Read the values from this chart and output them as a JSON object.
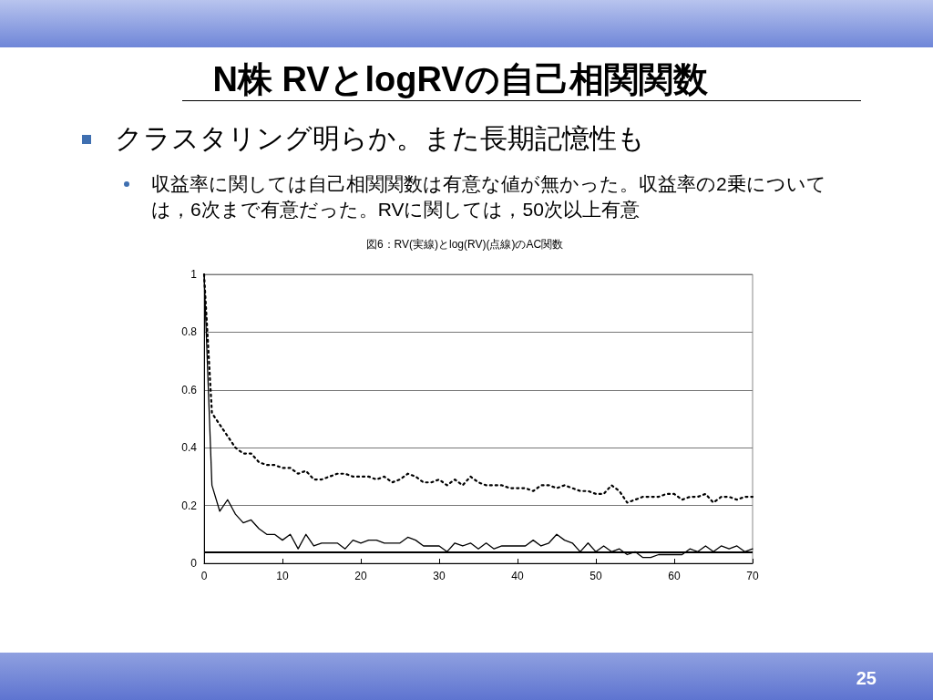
{
  "chart_data": {
    "type": "line",
    "title": "N株  RVとlogRVの自己相関関数",
    "subtitle": "図6：RV(実線)とlog(RV)(点線)のAC関数",
    "annotations": [
      "クラスタリング明らか。また長期記憶性も",
      "収益率に関しては自己相関関数は有意な値が無かった。収益率の2乗については，6次まで有意だった。RVに関しては，50次以上有意",
      "25"
    ],
    "x": [
      0,
      1,
      2,
      3,
      4,
      5,
      6,
      7,
      8,
      9,
      10,
      11,
      12,
      13,
      14,
      15,
      16,
      17,
      18,
      19,
      20,
      21,
      22,
      23,
      24,
      25,
      26,
      27,
      28,
      29,
      30,
      31,
      32,
      33,
      34,
      35,
      36,
      37,
      38,
      39,
      40,
      41,
      42,
      43,
      44,
      45,
      46,
      47,
      48,
      49,
      50,
      51,
      52,
      53,
      54,
      55,
      56,
      57,
      58,
      59,
      60,
      61,
      62,
      63,
      64,
      65,
      66,
      67,
      68,
      69,
      70
    ],
    "series": [
      {
        "color": "#000000",
        "line_style": "solid",
        "values": [
          1.0,
          0.27,
          0.18,
          0.22,
          0.17,
          0.14,
          0.15,
          0.12,
          0.1,
          0.1,
          0.08,
          0.1,
          0.05,
          0.1,
          0.06,
          0.07,
          0.07,
          0.07,
          0.05,
          0.08,
          0.07,
          0.08,
          0.08,
          0.07,
          0.07,
          0.07,
          0.09,
          0.08,
          0.06,
          0.06,
          0.06,
          0.04,
          0.07,
          0.06,
          0.07,
          0.05,
          0.07,
          0.05,
          0.06,
          0.06,
          0.06,
          0.06,
          0.08,
          0.06,
          0.07,
          0.1,
          0.08,
          0.07,
          0.04,
          0.07,
          0.04,
          0.06,
          0.04,
          0.05,
          0.03,
          0.04,
          0.02,
          0.02,
          0.03,
          0.03,
          0.03,
          0.03,
          0.05,
          0.04,
          0.06,
          0.04,
          0.06,
          0.05,
          0.06,
          0.04,
          0.05
        ]
      },
      {
        "color": "#000000",
        "line_style": "dotted",
        "values": [
          1.0,
          0.52,
          0.48,
          0.44,
          0.4,
          0.38,
          0.38,
          0.35,
          0.34,
          0.34,
          0.33,
          0.33,
          0.31,
          0.32,
          0.29,
          0.29,
          0.3,
          0.31,
          0.31,
          0.3,
          0.3,
          0.3,
          0.29,
          0.3,
          0.28,
          0.29,
          0.31,
          0.3,
          0.28,
          0.28,
          0.29,
          0.27,
          0.29,
          0.27,
          0.3,
          0.28,
          0.27,
          0.27,
          0.27,
          0.26,
          0.26,
          0.26,
          0.25,
          0.27,
          0.27,
          0.26,
          0.27,
          0.26,
          0.25,
          0.25,
          0.24,
          0.24,
          0.27,
          0.25,
          0.21,
          0.22,
          0.23,
          0.23,
          0.23,
          0.24,
          0.24,
          0.22,
          0.23,
          0.23,
          0.24,
          0.21,
          0.23,
          0.23,
          0.22,
          0.23,
          0.23
        ]
      }
    ],
    "ref_lines": [
      {
        "axis": "y",
        "value": 0.04,
        "color": "#000000",
        "line_style": "solid"
      }
    ],
    "xlim": [
      0,
      70
    ],
    "xticks": [
      0,
      10,
      20,
      30,
      40,
      50,
      60,
      70
    ],
    "ylim": [
      0,
      1
    ],
    "yticks": [
      0,
      0.2,
      0.4,
      0.6,
      0.8,
      1
    ],
    "grid": "y",
    "marker": "none"
  }
}
